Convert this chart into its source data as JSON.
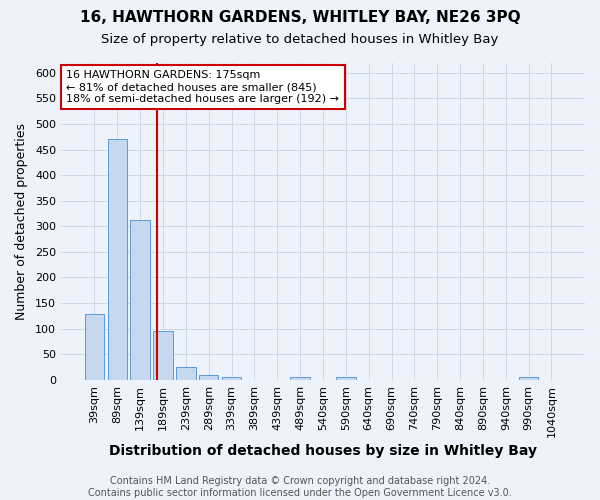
{
  "title_line1": "16, HAWTHORN GARDENS, WHITLEY BAY, NE26 3PQ",
  "title_line2": "Size of property relative to detached houses in Whitley Bay",
  "xlabel": "Distribution of detached houses by size in Whitley Bay",
  "ylabel": "Number of detached properties",
  "bar_labels": [
    "39sqm",
    "89sqm",
    "139sqm",
    "189sqm",
    "239sqm",
    "289sqm",
    "339sqm",
    "389sqm",
    "439sqm",
    "489sqm",
    "540sqm",
    "590sqm",
    "640sqm",
    "690sqm",
    "740sqm",
    "790sqm",
    "840sqm",
    "890sqm",
    "940sqm",
    "990sqm",
    "1040sqm"
  ],
  "bar_values": [
    128,
    470,
    312,
    96,
    26,
    10,
    6,
    0,
    0,
    5,
    0,
    5,
    0,
    0,
    0,
    0,
    0,
    0,
    0,
    5,
    0
  ],
  "bar_color": "#c5d8f0",
  "bar_edge_color": "#5b9bd5",
  "grid_color": "#d0d8e8",
  "background_color": "#eef2fb",
  "property_line_color": "#cc0000",
  "annotation_line1": "16 HAWTHORN GARDENS: 175sqm",
  "annotation_line2": "← 81% of detached houses are smaller (845)",
  "annotation_line3": "18% of semi-detached houses are larger (192) →",
  "annotation_box_color": "#ffffff",
  "annotation_box_edge": "#cc0000",
  "ylim": [
    0,
    620
  ],
  "yticks": [
    0,
    50,
    100,
    150,
    200,
    250,
    300,
    350,
    400,
    450,
    500,
    550,
    600
  ],
  "footer": "Contains HM Land Registry data © Crown copyright and database right 2024.\nContains public sector information licensed under the Open Government Licence v3.0.",
  "title_fontsize": 11,
  "subtitle_fontsize": 9.5,
  "xlabel_fontsize": 10,
  "ylabel_fontsize": 9,
  "tick_fontsize": 8,
  "annotation_fontsize": 8,
  "footer_fontsize": 7
}
